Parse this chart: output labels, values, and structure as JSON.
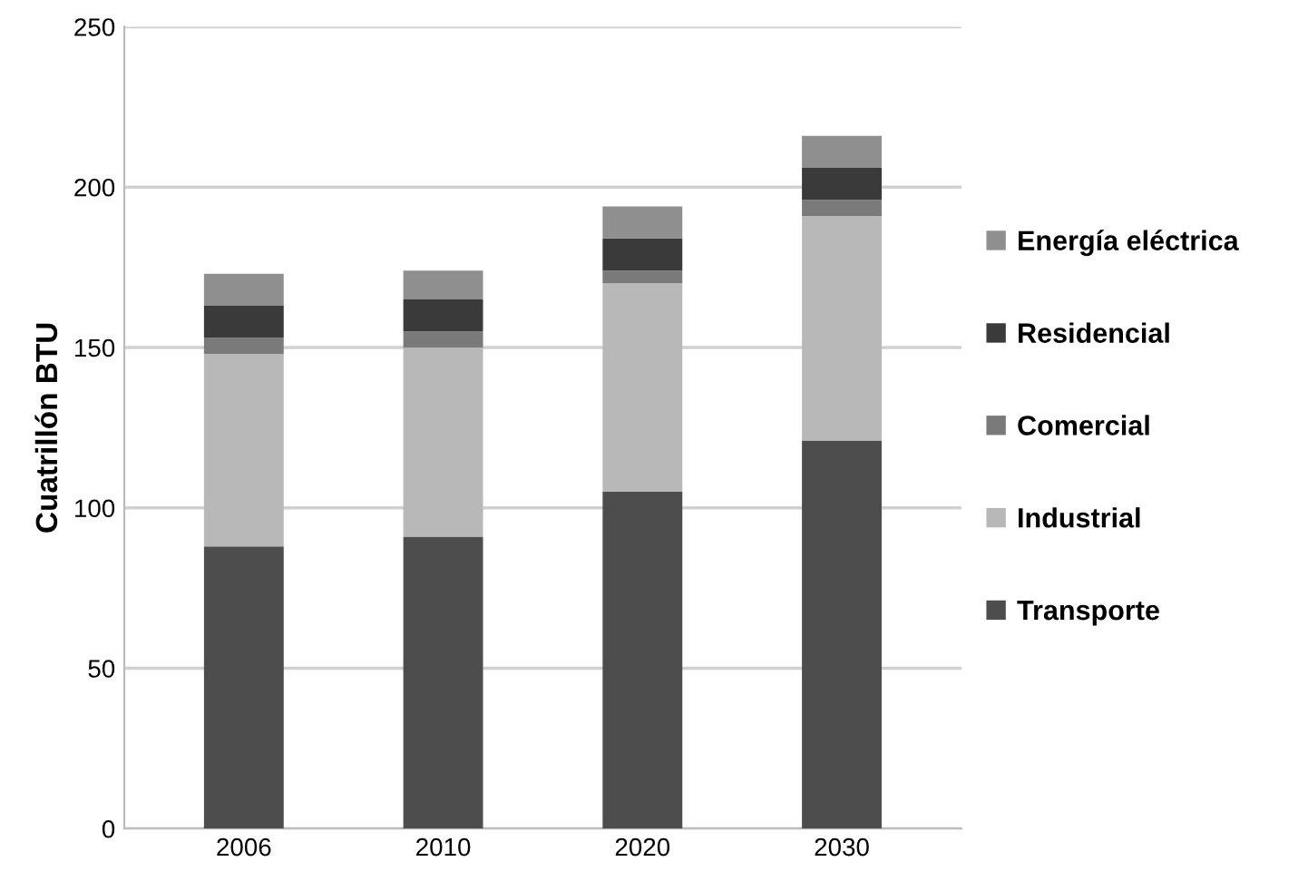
{
  "chart_data": {
    "type": "bar",
    "stacked": true,
    "ylabel": "Cuatrillón BTU",
    "categories": [
      "2006",
      "2010",
      "2020",
      "2030"
    ],
    "series": [
      {
        "name": "Transporte",
        "color": "#4d4d4d",
        "values": [
          88,
          91,
          105,
          121
        ]
      },
      {
        "name": "Industrial",
        "color": "#b8b8b8",
        "values": [
          60,
          59,
          65,
          70
        ]
      },
      {
        "name": "Comercial",
        "color": "#7a7a7a",
        "values": [
          5,
          5,
          4,
          5
        ]
      },
      {
        "name": "Residencial",
        "color": "#3a3a3a",
        "values": [
          10,
          10,
          10,
          10
        ]
      },
      {
        "name": "Energía eléctrica",
        "color": "#8f8f8f",
        "values": [
          10,
          9,
          10,
          10
        ]
      }
    ],
    "ylim": [
      0,
      250
    ],
    "yticks": [
      0,
      50,
      100,
      150,
      200,
      250
    ],
    "grid": "y",
    "legend": "right"
  }
}
